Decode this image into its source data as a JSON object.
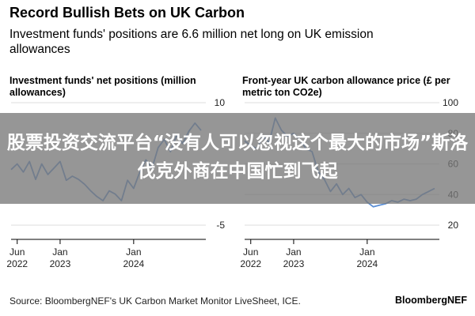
{
  "header": {
    "title": "Record Bullish Bets on UK Carbon",
    "subtitle": "Investment funds' positions are 6.6 million net long on UK emission allowances"
  },
  "overlay": {
    "text": "股票投资交流平台“没有人可以忽视这个最大的市场”斯洛伐克外商在中国忙到飞起"
  },
  "footer": {
    "source": "Source: BloombergNEF's UK Carbon Market Monitor LiveSheet, ICE.",
    "brand": "BloombergNEF"
  },
  "colors": {
    "line": "#5b8fd6",
    "grid": "#dddddd",
    "axis": "#000000"
  },
  "chart_data": [
    {
      "type": "line",
      "title": "Investment funds' net positions (million allowances)",
      "xlabel": "",
      "ylabel": "",
      "ylim": [
        -5,
        10
      ],
      "yticks": [
        10,
        -5
      ],
      "grid": true,
      "xticks": [
        {
          "value": "2022-06",
          "label_top": "Jun",
          "label_bottom": "2022"
        },
        {
          "value": "2023-01",
          "label_top": "Jan",
          "label_bottom": "2023"
        },
        {
          "value": "2024-01",
          "label_top": "Jan",
          "label_bottom": "2024"
        }
      ],
      "x": [
        "2022-05",
        "2022-06",
        "2022-07",
        "2022-08",
        "2022-09",
        "2022-10",
        "2022-11",
        "2022-12",
        "2023-01",
        "2023-02",
        "2023-03",
        "2023-04",
        "2023-05",
        "2023-06",
        "2023-07",
        "2023-08",
        "2023-09",
        "2023-10",
        "2023-11",
        "2023-12",
        "2024-01",
        "2024-02",
        "2024-03",
        "2024-04",
        "2024-05",
        "2024-06",
        "2024-07",
        "2024-08",
        "2024-09",
        "2024-10",
        "2024-11",
        "2024-12"
      ],
      "series": [
        {
          "values": [
            1.8,
            2.5,
            1.5,
            2.8,
            0.6,
            2.5,
            1.2,
            2.0,
            2.8,
            0.5,
            1.0,
            0.6,
            0.0,
            -0.8,
            -1.5,
            -2.0,
            -0.8,
            -1.2,
            -2.0,
            0.5,
            -0.5,
            1.5,
            3.0,
            2.0,
            4.5,
            5.5,
            4.0,
            6.0,
            5.0,
            6.5,
            7.5,
            6.6
          ]
        }
      ]
    },
    {
      "type": "line",
      "title": "Front-year UK carbon allowance price (£ per metric ton CO2e)",
      "xlabel": "",
      "ylabel": "",
      "ylim": [
        20,
        100
      ],
      "yticks": [
        100,
        80,
        60,
        40,
        20
      ],
      "grid": true,
      "xticks": [
        {
          "value": "2022-06",
          "label_top": "Jun",
          "label_bottom": "2022"
        },
        {
          "value": "2023-01",
          "label_top": "Jan",
          "label_bottom": "2023"
        },
        {
          "value": "2024-01",
          "label_top": "Jan",
          "label_bottom": "2024"
        }
      ],
      "x": [
        "2022-05",
        "2022-06",
        "2022-07",
        "2022-08",
        "2022-09",
        "2022-10",
        "2022-11",
        "2022-12",
        "2023-01",
        "2023-02",
        "2023-03",
        "2023-04",
        "2023-05",
        "2023-06",
        "2023-07",
        "2023-08",
        "2023-09",
        "2023-10",
        "2023-11",
        "2023-12",
        "2024-01",
        "2024-02",
        "2024-03",
        "2024-04",
        "2024-05",
        "2024-06",
        "2024-07",
        "2024-08",
        "2024-09",
        "2024-10",
        "2024-11",
        "2024-12"
      ],
      "series": [
        {
          "values": [
            75,
            72,
            70,
            78,
            74,
            90,
            82,
            78,
            80,
            76,
            70,
            68,
            55,
            50,
            42,
            47,
            40,
            44,
            38,
            40,
            35,
            32,
            33,
            34,
            36,
            35,
            37,
            36,
            37,
            40,
            42,
            44
          ]
        }
      ]
    }
  ]
}
